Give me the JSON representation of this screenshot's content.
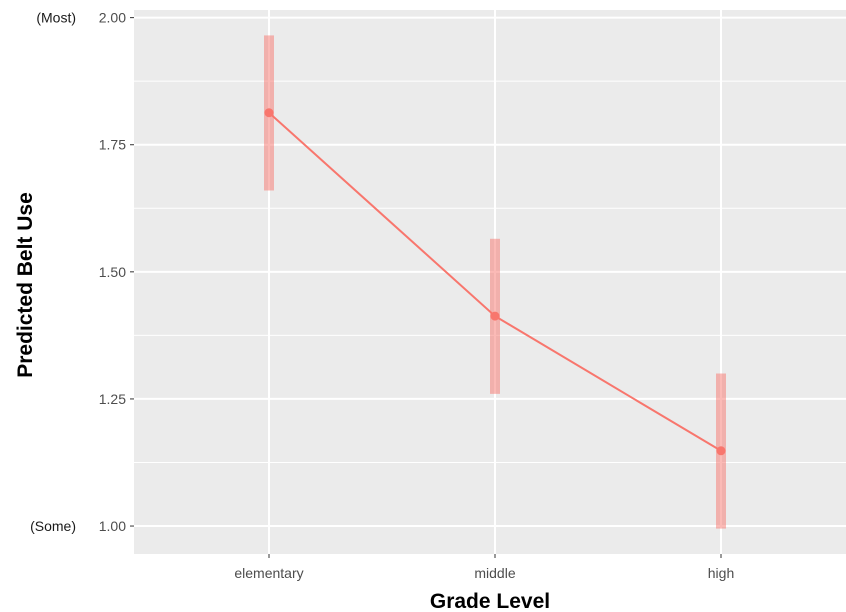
{
  "chart_data": {
    "type": "line",
    "title": "",
    "xlabel": "Grade Level",
    "ylabel": "Predicted Belt Use",
    "categories": [
      "elementary",
      "middle",
      "high"
    ],
    "values": [
      1.813,
      1.413,
      1.148
    ],
    "ci_lower": [
      1.66,
      1.26,
      0.995
    ],
    "ci_upper": [
      1.965,
      1.565,
      1.3
    ],
    "ylim": [
      0.945,
      2.015
    ],
    "yticks": [
      1.0,
      1.25,
      1.5,
      1.75,
      2.0
    ],
    "ytick_labels": [
      "1.00",
      "1.25",
      "1.50",
      "1.75",
      "2.00"
    ],
    "y_annotations": [
      {
        "value": 2.0,
        "text": "(Most)"
      },
      {
        "value": 1.0,
        "text": "(Some)"
      }
    ],
    "grid": true,
    "colors": {
      "panel": "#ebebeb",
      "gridline": "#ffffff",
      "line": "#f8766d",
      "errorbar": "#f8766d"
    }
  }
}
